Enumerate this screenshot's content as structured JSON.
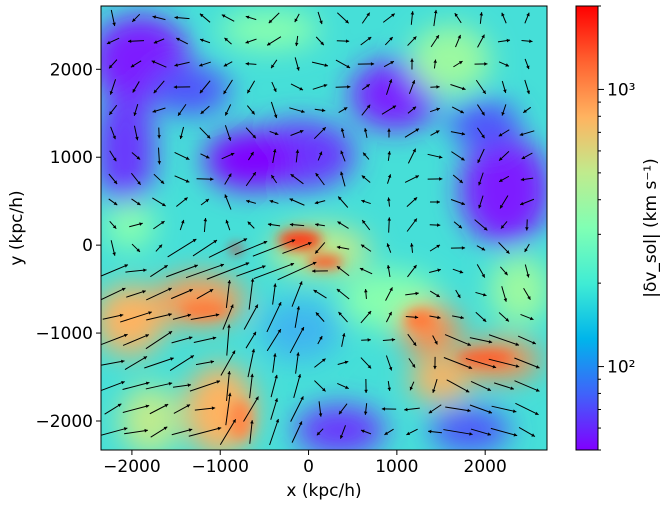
{
  "chart_data": {
    "type": "heatmap",
    "xlabel": "x (kpc/h)",
    "ylabel": "y (kpc/h)",
    "xlim": [
      -2350,
      2700
    ],
    "ylim": [
      -2330,
      2720
    ],
    "x_ticks": [
      {
        "value": -2000,
        "label": "−2000"
      },
      {
        "value": -1000,
        "label": "−1000"
      },
      {
        "value": 0,
        "label": "0"
      },
      {
        "value": 1000,
        "label": "1000"
      },
      {
        "value": 2000,
        "label": "2000"
      }
    ],
    "y_ticks": [
      {
        "value": -2000,
        "label": "−2000"
      },
      {
        "value": -1000,
        "label": "−1000"
      },
      {
        "value": 0,
        "label": "0"
      },
      {
        "value": 1000,
        "label": "1000"
      },
      {
        "value": 2000,
        "label": "2000"
      }
    ],
    "colorbar": {
      "label": "|δv_sol| (km s⁻¹)",
      "scale": "log",
      "range": [
        50,
        2000
      ],
      "ticks": [
        {
          "value": 100,
          "label": "10²"
        },
        {
          "value": 1000,
          "label": "10³"
        }
      ],
      "colormap": [
        "#8000ff",
        "#4062fa",
        "#00b5eb",
        "#40ecd4",
        "#80ffb4",
        "#c0eb8d",
        "#ffb360",
        "#ff6230",
        "#ff0000"
      ]
    },
    "overlay": "velocity-quiver-arrows",
    "grid": false
  }
}
